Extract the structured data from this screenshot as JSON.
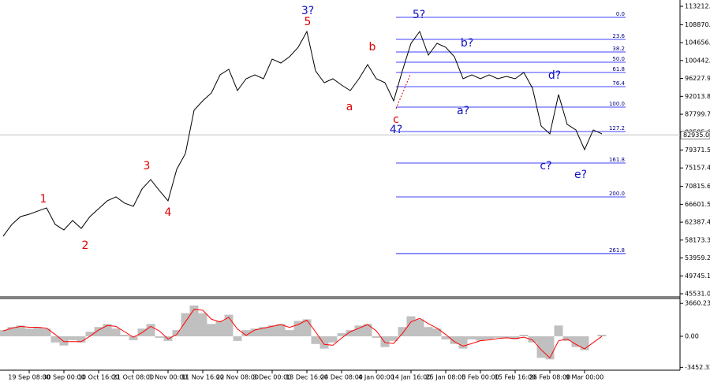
{
  "chart_data": [
    {
      "type": "line",
      "categories": [
        null,
        null,
        null,
        "19 Sep 08:00",
        null,
        null,
        null,
        "30 Sep 00:00",
        null,
        null,
        null,
        "10 Oct 16:00",
        null,
        null,
        null,
        "21 Oct 08:00",
        null,
        null,
        null,
        "1 Nov 00:00",
        null,
        null,
        null,
        "11 Nov 16:00",
        null,
        null,
        null,
        "22 Nov 08:00",
        null,
        null,
        null,
        "3 Dec 00:00",
        null,
        null,
        null,
        "13 Dec 16:00",
        null,
        null,
        null,
        "24 Dec 08:00",
        null,
        null,
        null,
        "4 Jan 00:00",
        null,
        null,
        null,
        "14 Jan 16:00",
        null,
        null,
        null,
        "25 Jan 08:00",
        null,
        null,
        null,
        "5 Feb 00:00",
        null,
        null,
        null,
        "15 Feb 16:00",
        null,
        null,
        null,
        "26 Feb 08:00",
        null,
        null,
        null,
        "9 Mar 00:00",
        null,
        null
      ],
      "series": [
        {
          "color": "#000000",
          "values": [
            59075,
            61856,
            63710,
            64266,
            65008,
            65750,
            61856,
            60558,
            62783,
            60929,
            63710,
            65564,
            67418,
            68345,
            66862,
            66120,
            70199,
            72424,
            69828,
            67418,
            74834,
            78542,
            88739,
            90964,
            92817,
            97082,
            98380,
            93374,
            96155,
            97082,
            96155,
            100790,
            99863,
            101346,
            103571,
            107279,
            98009,
            95228,
            96155,
            94672,
            93374,
            96155,
            99492,
            96155,
            95228,
            90964,
            98009,
            104498,
            107279,
            101717,
            104498,
            103571,
            101346,
            96155,
            97082,
            96155,
            97082,
            96155,
            96711,
            96155,
            97638,
            93930,
            85031,
            83177,
            92447,
            85402,
            84104,
            79469,
            84104,
            83177
          ]
        }
      ],
      "ylim": [
        44790,
        114695
      ],
      "yticks": [
        113212.05,
        108870.25,
        104656.15,
        100442.05,
        96227.95,
        92013.85,
        87799.75,
        83585.65,
        79371.55,
        75157.45,
        70815.65,
        66601.55,
        62387.45,
        58173.35,
        53959.25,
        49745.15,
        45531.05
      ],
      "current_price": {
        "value": 82935,
        "label": "82935.00"
      },
      "fib_color": "#0000ff",
      "fib_levels": [
        {
          "label": "0.0",
          "value": 110616
        },
        {
          "label": "23.6",
          "value": 105425
        },
        {
          "label": "38.2",
          "value": 102459
        },
        {
          "label": "50.0",
          "value": 100048
        },
        {
          "label": "61.8",
          "value": 97638
        },
        {
          "label": "76.4",
          "value": 94301
        },
        {
          "label": "100.0",
          "value": 89481
        },
        {
          "label": "127.2",
          "value": 83733
        },
        {
          "label": "161.8",
          "value": 76317
        },
        {
          "label": "200.0",
          "value": 68345
        },
        {
          "label": "261.8",
          "value": 54996
        }
      ],
      "annotations": [
        {
          "text": "1",
          "color": "#e00000"
        },
        {
          "text": "2",
          "color": "#e00000"
        },
        {
          "text": "3",
          "color": "#e00000"
        },
        {
          "text": "4",
          "color": "#e00000"
        },
        {
          "text": "5",
          "color": "#e00000"
        },
        {
          "text": "3?",
          "color": "#1010c0"
        },
        {
          "text": "a",
          "color": "#e00000"
        },
        {
          "text": "b",
          "color": "#e00000"
        },
        {
          "text": "c",
          "color": "#e00000"
        },
        {
          "text": "4?",
          "color": "#1010c0"
        },
        {
          "text": "5?",
          "color": "#1010c0"
        },
        {
          "text": "b?",
          "color": "#1010c0"
        },
        {
          "text": "a?",
          "color": "#1010c0"
        },
        {
          "text": "d?",
          "color": "#1010c0"
        },
        {
          "text": "c?",
          "color": "#1010c0"
        },
        {
          "text": "e?",
          "color": "#1010c0"
        }
      ]
    },
    {
      "type": "bar",
      "series": [
        {
          "type": "bar",
          "color": "#c0c0c0",
          "values": [
            686,
            1028,
            1200,
            857,
            1028,
            857,
            -686,
            -1028,
            -429,
            -686,
            514,
            1028,
            1371,
            857,
            171,
            -429,
            857,
            1371,
            -171,
            -514,
            686,
            2571,
            3428,
            2571,
            1371,
            1714,
            2400,
            -514,
            686,
            857,
            1028,
            1200,
            1371,
            686,
            1714,
            1885,
            -857,
            -1371,
            -686,
            343,
            686,
            1200,
            1371,
            -171,
            -1200,
            -514,
            1028,
            2228,
            1885,
            1028,
            857,
            -343,
            -857,
            -1371,
            -343,
            -514,
            -343,
            -171,
            -171,
            -343,
            171,
            -686,
            -2400,
            -2571,
            1200,
            -514,
            -1200,
            -1543,
            0,
            171
          ]
        },
        {
          "type": "line",
          "color": "#ff0000",
          "values": [
            600,
            900,
            1100,
            1000,
            1000,
            900,
            200,
            -600,
            -600,
            -600,
            0,
            700,
            1200,
            1100,
            500,
            -100,
            400,
            1100,
            600,
            -300,
            200,
            1600,
            3000,
            2900,
            1900,
            1600,
            2100,
            800,
            100,
            700,
            900,
            1100,
            1300,
            1000,
            1300,
            1800,
            500,
            -900,
            -1000,
            -200,
            500,
            900,
            1300,
            600,
            -700,
            -800,
            300,
            1600,
            2000,
            1400,
            900,
            200,
            -600,
            -1100,
            -800,
            -500,
            -400,
            -250,
            -170,
            -250,
            -100,
            -400,
            -1500,
            -2400,
            -500,
            -300,
            -900,
            -1400,
            -700,
            0
          ]
        }
      ],
      "ylim": [
        -3771,
        4114
      ],
      "yticks": [
        3660.235,
        {
          "value": 0,
          "label": "0.00"
        },
        -3452.32
      ]
    }
  ]
}
